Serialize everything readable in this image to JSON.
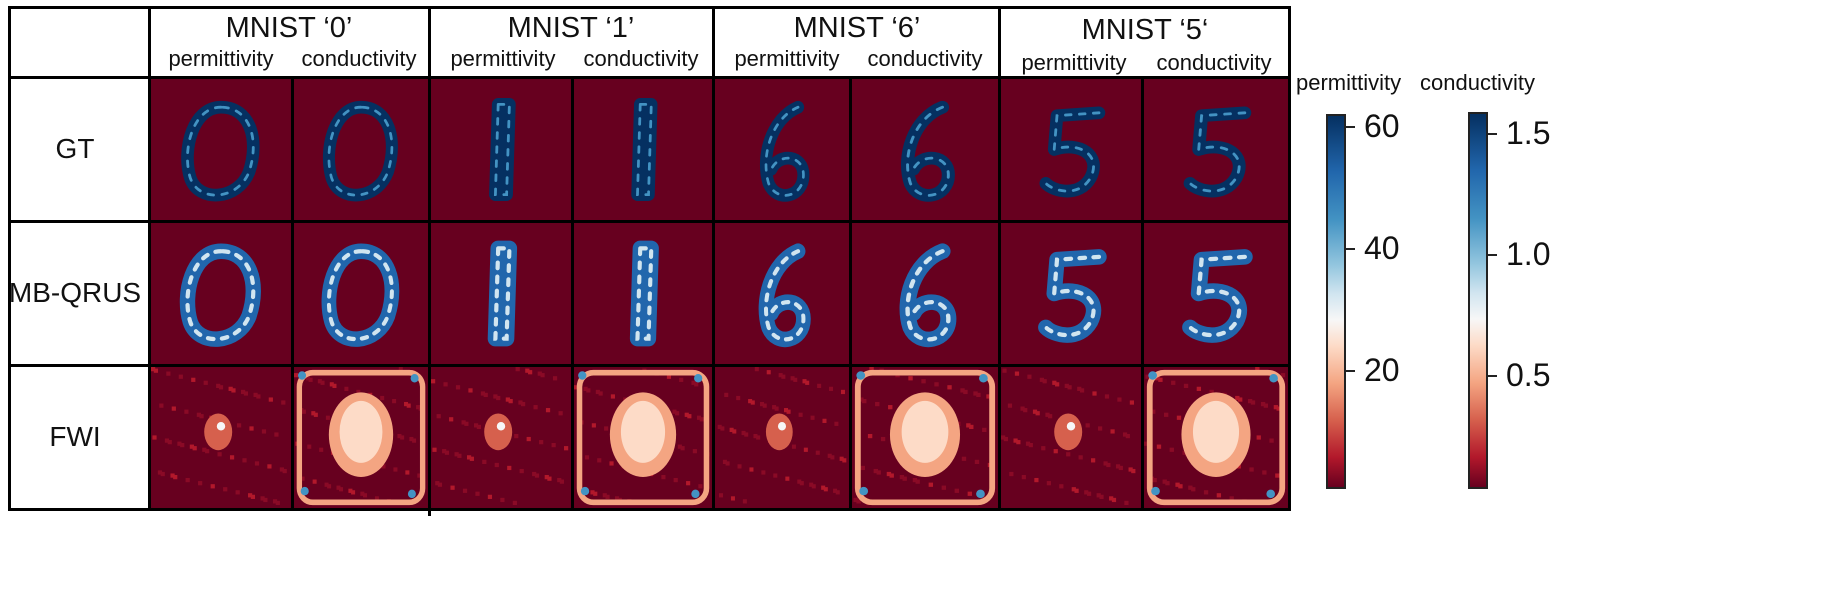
{
  "header": {
    "columns": [
      {
        "title": "MNIST ‘0’",
        "sub": [
          "permittivity",
          "conductivity"
        ]
      },
      {
        "title": "MNIST ‘1’",
        "sub": [
          "permittivity",
          "conductivity"
        ]
      },
      {
        "title": "MNIST ‘6’",
        "sub": [
          "permittivity",
          "conductivity"
        ]
      },
      {
        "title": "MNIST ‘5‘",
        "sub": [
          "permittivity",
          "conductivity"
        ]
      }
    ]
  },
  "rows": [
    "GT",
    "MB-QRUS",
    "FWI"
  ],
  "colorbars": [
    {
      "title": "permittivity",
      "ticks": [
        "60",
        "40",
        "20"
      ]
    },
    {
      "title": "conductivity",
      "ticks": [
        "1.5",
        "1.0",
        "0.5"
      ]
    }
  ],
  "colors": {
    "background_dark_red": "#67001f",
    "high_blue": "#053061",
    "mid_white": "#f7f7f7",
    "light_pink": "#f4a582"
  }
}
